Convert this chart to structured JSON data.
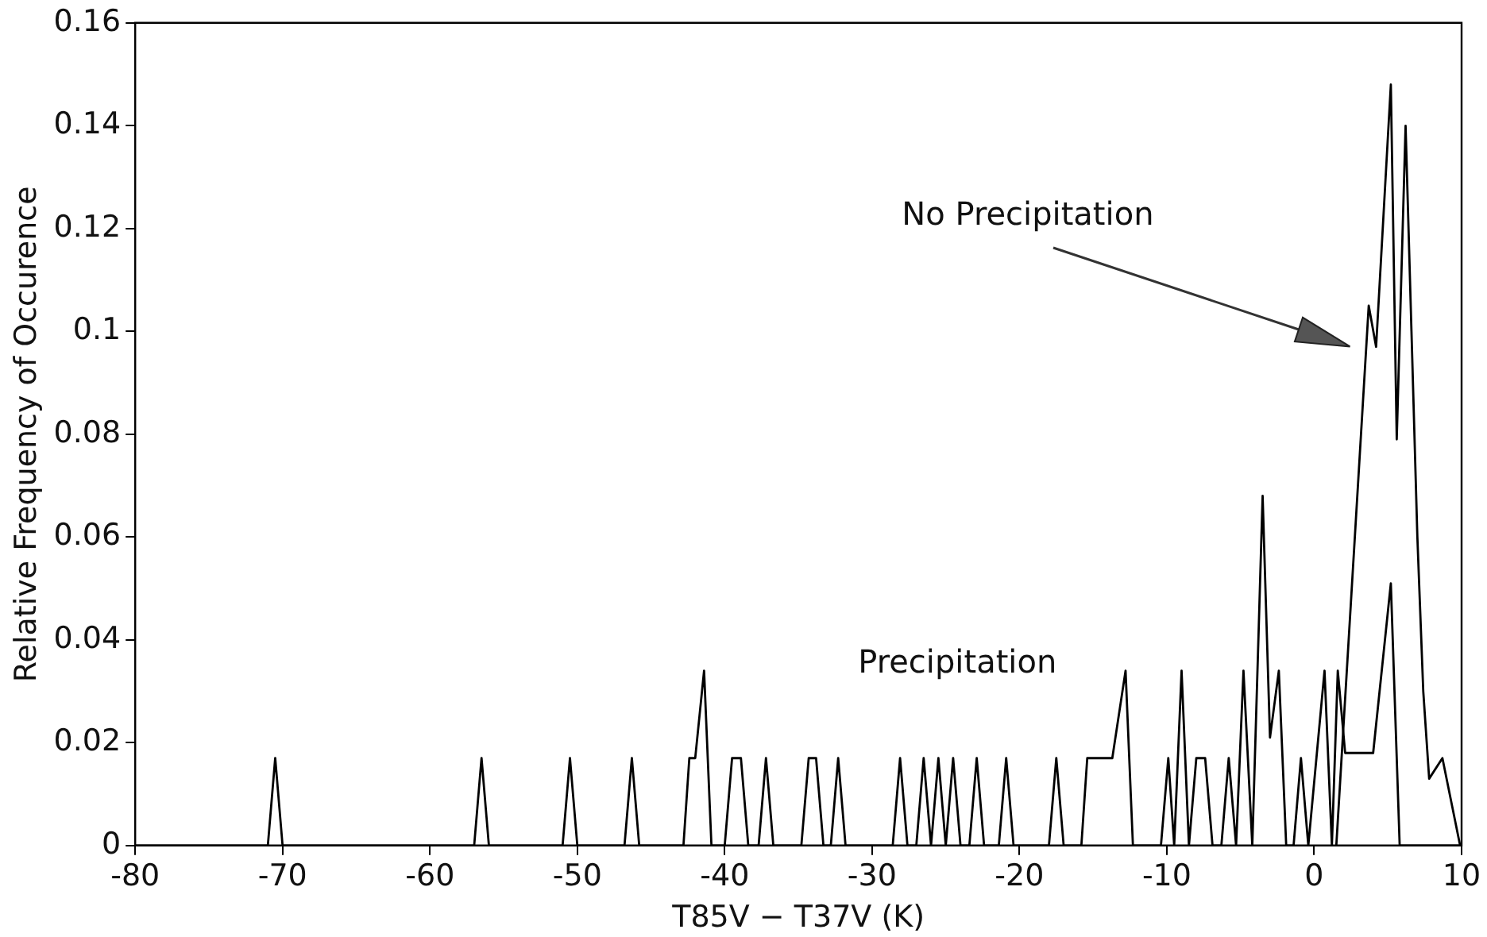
{
  "chart_data": {
    "type": "line",
    "xlabel": "T85V − T37V (K)",
    "ylabel": "Relative Frequency of Occurence",
    "xlim": [
      -80,
      10
    ],
    "xticks": [
      -80,
      -70,
      -60,
      -50,
      -40,
      -30,
      -20,
      -10,
      0,
      10
    ],
    "ylim": [
      0,
      0.16
    ],
    "yticks": [
      0,
      0.02,
      0.04,
      0.06,
      0.08,
      0.1,
      0.12,
      0.14,
      0.16
    ],
    "grid": false,
    "legend": false,
    "marker": "none",
    "line_style": "solid",
    "series": [
      {
        "color": "#000000",
        "x": [
          -80,
          -71,
          -70.5,
          -70,
          -57,
          -56.5,
          -56,
          -51,
          -50.5,
          -50,
          -46.8,
          -46.3,
          -45.8,
          -42.8,
          -42.4,
          -42,
          -41.4,
          -40.9,
          -40,
          -39.5,
          -38.9,
          -38.4,
          -37.7,
          -37.2,
          -36.7,
          -34.8,
          -34.3,
          -33.8,
          -33.3,
          -32.8,
          -32.3,
          -31.8,
          -28.6,
          -28.1,
          -27.6,
          -27,
          -26.5,
          -26,
          -25.5,
          -25,
          -24.5,
          -24,
          -23.4,
          -22.9,
          -22.4,
          -21.4,
          -20.9,
          -20.4,
          -18,
          -17.5,
          -17,
          -15.8,
          -15.4,
          -13.7,
          -12.8,
          -12.3,
          -10.4,
          -9.9,
          -9.5,
          -9,
          -8.5,
          -8,
          -7.4,
          -6.9,
          -6.3,
          -5.8,
          -5.3,
          -4.8,
          -4.2,
          -3.5,
          -3,
          -2.4,
          -1.9,
          -1.4,
          -0.9,
          -0.4,
          0.7,
          1.2,
          1.6,
          2.1,
          4,
          5.2,
          5.8,
          10
        ],
        "values": [
          0,
          0,
          0.017,
          0,
          0,
          0.017,
          0,
          0,
          0.017,
          0,
          0,
          0.017,
          0,
          0,
          0.017,
          0.017,
          0.034,
          0,
          0,
          0.017,
          0.017,
          0,
          0,
          0.017,
          0,
          0,
          0.017,
          0.017,
          0,
          0,
          0.017,
          0,
          0,
          0.017,
          0,
          0,
          0.017,
          0,
          0.017,
          0,
          0.017,
          0,
          0,
          0.017,
          0,
          0,
          0.017,
          0,
          0,
          0.017,
          0,
          0,
          0.017,
          0.017,
          0.034,
          0,
          0,
          0.017,
          0,
          0.034,
          0,
          0.017,
          0.017,
          0,
          0,
          0.017,
          0,
          0.034,
          0,
          0.068,
          0.021,
          0.034,
          0,
          0,
          0.017,
          0,
          0.034,
          0,
          0.034,
          0.018,
          0.018,
          0.051,
          0,
          0
        ]
      },
      {
        "color": "#000000",
        "x": [
          1.5,
          3.7,
          4.2,
          5.2,
          5.6,
          6.2,
          6.6,
          7,
          7.4,
          7.8,
          8.7,
          9.9
        ],
        "values": [
          0,
          0.105,
          0.097,
          0.148,
          0.079,
          0.14,
          0.1,
          0.06,
          0.03,
          0.013,
          0.017,
          0
        ]
      }
    ],
    "annotations": [
      "Precipitation",
      "No Precipitation"
    ]
  }
}
